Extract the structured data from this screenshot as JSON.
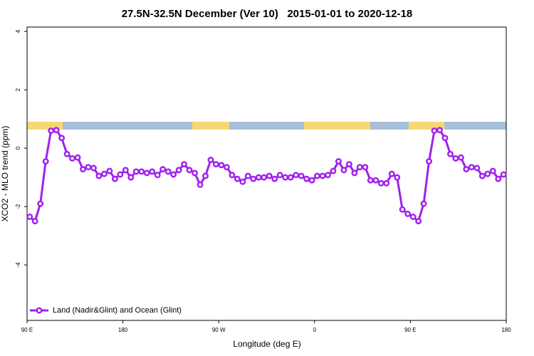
{
  "chart_data": {
    "type": "line",
    "title": "27.5N-32.5N December (Ver 10)   2015-01-01 to 2020-12-18",
    "xlabel": "Longitude (deg E)",
    "ylabel": "XCO2 - MLO trend (ppm)",
    "xlim": [
      90,
      540
    ],
    "xticks": [
      {
        "value": 90,
        "label": "90 E"
      },
      180,
      {
        "value": 270,
        "label": "90 W"
      },
      {
        "value": 360,
        "label": "0"
      },
      {
        "value": 450,
        "label": "90 E"
      },
      {
        "value": 540,
        "label": "180"
      }
    ],
    "ylim": [
      -5.9,
      4.15
    ],
    "yticks": [
      -4,
      -2,
      0,
      2,
      4
    ],
    "legend": "bottom-left",
    "x": [
      92.5,
      97.5,
      102.5,
      107.5,
      112.5,
      117.5,
      122.5,
      127.5,
      132.5,
      137.5,
      142.5,
      147.5,
      152.5,
      157.5,
      162.5,
      167.5,
      172.5,
      177.5,
      182.5,
      187.5,
      192.5,
      197.5,
      202.5,
      207.5,
      212.5,
      217.5,
      222.5,
      227.5,
      232.5,
      237.5,
      242.5,
      247.5,
      252.5,
      257.5,
      262.5,
      267.5,
      272.5,
      277.5,
      282.5,
      287.5,
      292.5,
      297.5,
      302.5,
      307.5,
      312.5,
      317.5,
      322.5,
      327.5,
      332.5,
      337.5,
      342.5,
      347.5,
      352.5,
      357.5,
      362.5,
      367.5,
      372.5,
      377.5,
      382.5,
      387.5,
      392.5,
      397.5,
      402.5,
      407.5,
      412.5,
      417.5,
      422.5,
      427.5,
      432.5,
      437.5,
      442.5,
      447.5,
      452.5,
      457.5,
      462.5,
      467.5,
      472.5,
      477.5,
      482.5,
      487.5,
      492.5,
      497.5,
      502.5,
      507.5,
      512.5,
      517.5,
      522.5,
      527.5,
      532.5,
      537.5
    ],
    "series": [
      {
        "name": "Land (Nadir&Glint) and Ocean (Glint)",
        "color": "#a020f0",
        "values": [
          -2.35,
          -2.5,
          -1.9,
          -0.45,
          0.6,
          0.62,
          0.35,
          -0.2,
          -0.35,
          -0.32,
          -0.72,
          -0.65,
          -0.68,
          -0.95,
          -0.88,
          -0.78,
          -1.05,
          -0.9,
          -0.75,
          -1.0,
          -0.8,
          -0.8,
          -0.85,
          -0.8,
          -0.92,
          -0.72,
          -0.8,
          -0.9,
          -0.75,
          -0.55,
          -0.75,
          -0.85,
          -1.25,
          -0.95,
          -0.4,
          -0.55,
          -0.58,
          -0.65,
          -0.92,
          -1.05,
          -1.15,
          -0.95,
          -1.05,
          -1.0,
          -1.0,
          -0.95,
          -1.05,
          -0.92,
          -1.0,
          -1.0,
          -0.92,
          -0.95,
          -1.05,
          -1.1,
          -0.95,
          -0.95,
          -0.92,
          -0.78,
          -0.45,
          -0.75,
          -0.55,
          -0.85,
          -0.65,
          -0.65,
          -1.1,
          -1.1,
          -1.2,
          -1.2,
          -0.88,
          -1.0,
          -2.1,
          -2.25,
          -2.35,
          -2.5,
          -1.9,
          -0.45,
          0.6,
          0.62,
          0.35,
          -0.2,
          -0.35,
          -0.32,
          -0.72,
          -0.65,
          -0.68,
          -0.95,
          -0.88,
          -0.78,
          -1.05,
          -0.9
        ]
      }
    ]
  }
}
